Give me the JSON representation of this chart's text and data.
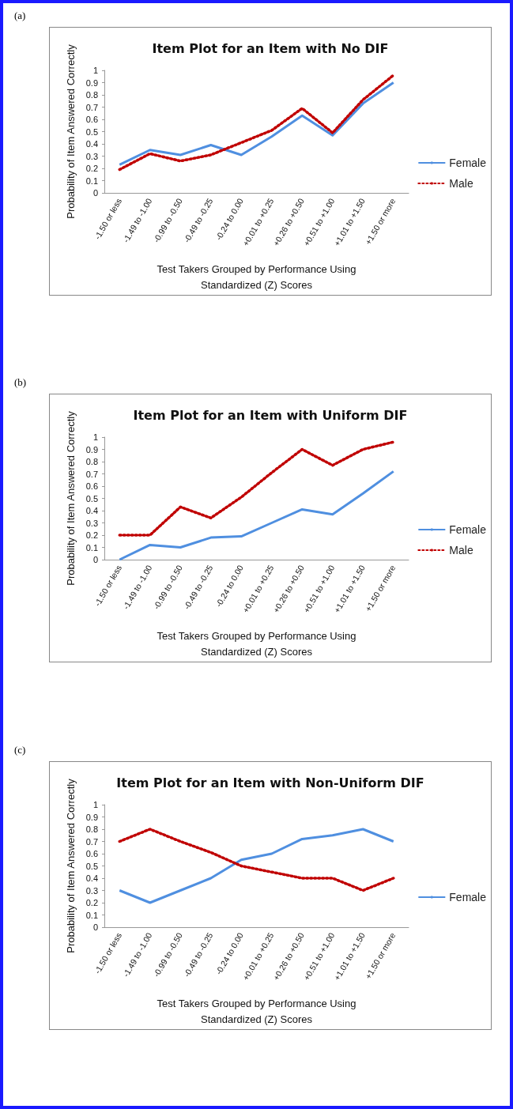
{
  "chart_data": [
    {
      "type": "line",
      "title": "Item Plot for an Item with No DIF",
      "annotations": [
        "(a)"
      ],
      "xlabel": "Test Takers Grouped by Performance Using\nStandardized (Z) Scores",
      "ylabel": "Probability of Item Answered Correctly",
      "categories": [
        "-1.50 or less",
        "-1.49 to -1.00",
        "-0.99 to -0.50",
        "-0.49 to -0.25",
        "-0.24 to 0.00",
        "+0.01 to +0.25",
        "+0.26 to +0.50",
        "+0.51 to +1.00",
        "+1.01 to +1.50",
        "+1.50 or more"
      ],
      "series": [
        {
          "name": "Female",
          "color": "#4f8fe0",
          "line_style": "solid",
          "values": [
            0.23,
            0.35,
            0.31,
            0.39,
            0.31,
            0.46,
            0.63,
            0.47,
            0.73,
            0.9
          ]
        },
        {
          "name": "Male",
          "color": "#c00000",
          "line_style": "dotted",
          "values": [
            0.19,
            0.32,
            0.26,
            0.31,
            0.41,
            0.51,
            0.69,
            0.49,
            0.76,
            0.96
          ]
        }
      ],
      "ylim": [
        0,
        1
      ],
      "yticks": [
        0,
        0.1,
        0.2,
        0.3,
        0.4,
        0.5,
        0.6,
        0.7,
        0.8,
        0.9,
        1
      ],
      "grid": false,
      "legend": "right",
      "marker": "none"
    },
    {
      "type": "line",
      "title": "Item Plot for an Item with Uniform DIF",
      "annotations": [
        "(b)"
      ],
      "xlabel": "Test Takers Grouped by Performance Using\nStandardized (Z) Scores",
      "ylabel": "Probability of Item Answered Correctly",
      "categories": [
        "-1.50 or less",
        "-1.49 to -1.00",
        "-0.99 to -0.50",
        "-0.49 to -0.25",
        "-0.24 to 0.00",
        "+0.01 to +0.25",
        "+0.26 to +0.50",
        "+0.51 to +1.00",
        "+1.01 to +1.50",
        "+1.50 or more"
      ],
      "series": [
        {
          "name": "Female",
          "color": "#4f8fe0",
          "line_style": "solid",
          "values": [
            0,
            0.12,
            0.1,
            0.18,
            0.19,
            0.3,
            0.41,
            0.37,
            0.54,
            0.72
          ]
        },
        {
          "name": "Male",
          "color": "#c00000",
          "line_style": "dotted",
          "values": [
            0.2,
            0.2,
            0.43,
            0.34,
            0.51,
            0.71,
            0.9,
            0.77,
            0.9,
            0.96
          ]
        }
      ],
      "ylim": [
        0,
        1
      ],
      "yticks": [
        0,
        0.1,
        0.2,
        0.3,
        0.4,
        0.5,
        0.6,
        0.7,
        0.8,
        0.9,
        1
      ],
      "grid": false,
      "legend": "right",
      "marker": "none"
    },
    {
      "type": "line",
      "title": "Item Plot for an Item with Non-Uniform DIF",
      "annotations": [
        "(c)"
      ],
      "xlabel": "Test Takers Grouped by Performance Using\nStandardized (Z) Scores",
      "ylabel": "Probability of Item Answered Correctly",
      "categories": [
        "-1.50 or less",
        "-1.49 to -1.00",
        "-0.99 to -0.50",
        "-0.49 to -0.25",
        "-0.24 to 0.00",
        "+0.01 to +0.25",
        "+0.26 to +0.50",
        "+0.51 to +1.00",
        "+1.01 to +1.50",
        "+1.50 or more"
      ],
      "series": [
        {
          "name": "Female",
          "color": "#4f8fe0",
          "line_style": "solid",
          "values": [
            0.3,
            0.2,
            0.3,
            0.4,
            0.55,
            0.6,
            0.72,
            0.75,
            0.8,
            0.7
          ]
        },
        {
          "color": "#c00000",
          "line_style": "dotted",
          "values": [
            0.7,
            0.8,
            0.7,
            0.61,
            0.5,
            0.45,
            0.4,
            0.4,
            0.3,
            0.4
          ]
        }
      ],
      "ylim": [
        0,
        1
      ],
      "yticks": [
        0,
        0.1,
        0.2,
        0.3,
        0.4,
        0.5,
        0.6,
        0.7,
        0.8,
        0.9,
        1
      ],
      "grid": false,
      "legend": "right",
      "marker": "none"
    }
  ]
}
